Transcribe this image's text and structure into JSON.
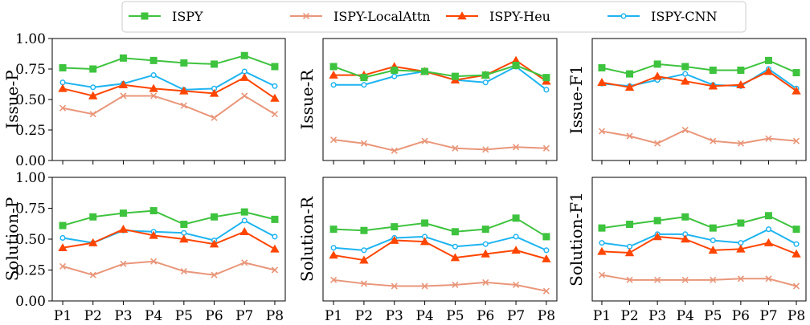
{
  "legend": [
    {
      "name": "ISPY",
      "color": "#3ec33e",
      "marker": "square"
    },
    {
      "name": "ISPY-LocalAttn",
      "color": "#e9967a",
      "marker": "x"
    },
    {
      "name": "ISPY-Heu",
      "color": "#ff4500",
      "marker": "triangle"
    },
    {
      "name": "ISPY-CNN",
      "color": "#1eb4f0",
      "marker": "circle"
    }
  ],
  "chart_data": [
    {
      "type": "line",
      "ylabel": "Issue-P",
      "categories": [
        "P1",
        "P2",
        "P3",
        "P4",
        "P5",
        "P6",
        "P7",
        "P8"
      ],
      "ylim": [
        0,
        1
      ],
      "yticks": [
        "0.00",
        "0.25",
        "0.50",
        "0.75",
        "1.00"
      ],
      "series": [
        {
          "name": "ISPY",
          "values": [
            0.76,
            0.75,
            0.84,
            0.82,
            0.8,
            0.79,
            0.86,
            0.77
          ]
        },
        {
          "name": "ISPY-LocalAttn",
          "values": [
            0.43,
            0.38,
            0.53,
            0.53,
            0.45,
            0.35,
            0.53,
            0.38
          ]
        },
        {
          "name": "ISPY-Heu",
          "values": [
            0.59,
            0.53,
            0.62,
            0.59,
            0.57,
            0.55,
            0.68,
            0.51
          ]
        },
        {
          "name": "ISPY-CNN",
          "values": [
            0.64,
            0.6,
            0.63,
            0.7,
            0.58,
            0.59,
            0.73,
            0.61
          ]
        }
      ]
    },
    {
      "type": "line",
      "ylabel": "Issue-R",
      "categories": [
        "P1",
        "P2",
        "P3",
        "P4",
        "P5",
        "P6",
        "P7",
        "P8"
      ],
      "ylim": [
        0,
        1
      ],
      "yticks": [],
      "series": [
        {
          "name": "ISPY",
          "values": [
            0.77,
            0.68,
            0.74,
            0.73,
            0.69,
            0.7,
            0.78,
            0.68
          ]
        },
        {
          "name": "ISPY-LocalAttn",
          "values": [
            0.17,
            0.14,
            0.08,
            0.16,
            0.1,
            0.09,
            0.11,
            0.1
          ]
        },
        {
          "name": "ISPY-Heu",
          "values": [
            0.7,
            0.7,
            0.77,
            0.73,
            0.66,
            0.7,
            0.82,
            0.65
          ]
        },
        {
          "name": "ISPY-CNN",
          "values": [
            0.62,
            0.62,
            0.69,
            0.73,
            0.66,
            0.64,
            0.77,
            0.58
          ]
        }
      ]
    },
    {
      "type": "line",
      "ylabel": "Issue-F1",
      "categories": [
        "P1",
        "P2",
        "P3",
        "P4",
        "P5",
        "P6",
        "P7",
        "P8"
      ],
      "ylim": [
        0,
        1
      ],
      "yticks": [],
      "series": [
        {
          "name": "ISPY",
          "values": [
            0.76,
            0.71,
            0.79,
            0.77,
            0.74,
            0.74,
            0.82,
            0.72
          ]
        },
        {
          "name": "ISPY-LocalAttn",
          "values": [
            0.24,
            0.2,
            0.14,
            0.25,
            0.16,
            0.14,
            0.18,
            0.16
          ]
        },
        {
          "name": "ISPY-Heu",
          "values": [
            0.64,
            0.6,
            0.69,
            0.65,
            0.61,
            0.62,
            0.73,
            0.57
          ]
        },
        {
          "name": "ISPY-CNN",
          "values": [
            0.63,
            0.61,
            0.66,
            0.71,
            0.62,
            0.61,
            0.75,
            0.59
          ]
        }
      ]
    },
    {
      "type": "line",
      "ylabel": "Solution-P",
      "categories": [
        "P1",
        "P2",
        "P3",
        "P4",
        "P5",
        "P6",
        "P7",
        "P8"
      ],
      "ylim": [
        0,
        1
      ],
      "yticks": [
        "0.00",
        "0.25",
        "0.50",
        "0.75",
        "1.00"
      ],
      "series": [
        {
          "name": "ISPY",
          "values": [
            0.61,
            0.68,
            0.71,
            0.73,
            0.62,
            0.68,
            0.72,
            0.66
          ]
        },
        {
          "name": "ISPY-LocalAttn",
          "values": [
            0.28,
            0.21,
            0.3,
            0.32,
            0.24,
            0.21,
            0.31,
            0.25
          ]
        },
        {
          "name": "ISPY-Heu",
          "values": [
            0.43,
            0.47,
            0.58,
            0.53,
            0.5,
            0.46,
            0.56,
            0.42
          ]
        },
        {
          "name": "ISPY-CNN",
          "values": [
            0.51,
            0.47,
            0.57,
            0.56,
            0.55,
            0.49,
            0.65,
            0.52
          ]
        }
      ]
    },
    {
      "type": "line",
      "ylabel": "Solution-R",
      "categories": [
        "P1",
        "P2",
        "P3",
        "P4",
        "P5",
        "P6",
        "P7",
        "P8"
      ],
      "ylim": [
        0,
        1
      ],
      "yticks": [],
      "series": [
        {
          "name": "ISPY",
          "values": [
            0.58,
            0.57,
            0.6,
            0.63,
            0.56,
            0.58,
            0.67,
            0.52
          ]
        },
        {
          "name": "ISPY-LocalAttn",
          "values": [
            0.17,
            0.14,
            0.12,
            0.12,
            0.13,
            0.15,
            0.13,
            0.08
          ]
        },
        {
          "name": "ISPY-Heu",
          "values": [
            0.37,
            0.33,
            0.49,
            0.48,
            0.35,
            0.38,
            0.41,
            0.34
          ]
        },
        {
          "name": "ISPY-CNN",
          "values": [
            0.43,
            0.41,
            0.51,
            0.52,
            0.44,
            0.46,
            0.52,
            0.41
          ]
        }
      ]
    },
    {
      "type": "line",
      "ylabel": "Solution-F1",
      "categories": [
        "P1",
        "P2",
        "P3",
        "P4",
        "P5",
        "P6",
        "P7",
        "P8"
      ],
      "ylim": [
        0,
        1
      ],
      "yticks": [],
      "series": [
        {
          "name": "ISPY",
          "values": [
            0.59,
            0.62,
            0.65,
            0.68,
            0.59,
            0.63,
            0.69,
            0.58
          ]
        },
        {
          "name": "ISPY-LocalAttn",
          "values": [
            0.21,
            0.17,
            0.17,
            0.17,
            0.17,
            0.18,
            0.18,
            0.12
          ]
        },
        {
          "name": "ISPY-Heu",
          "values": [
            0.4,
            0.39,
            0.52,
            0.5,
            0.41,
            0.42,
            0.47,
            0.38
          ]
        },
        {
          "name": "ISPY-CNN",
          "values": [
            0.47,
            0.44,
            0.54,
            0.54,
            0.49,
            0.47,
            0.58,
            0.46
          ]
        }
      ]
    }
  ]
}
